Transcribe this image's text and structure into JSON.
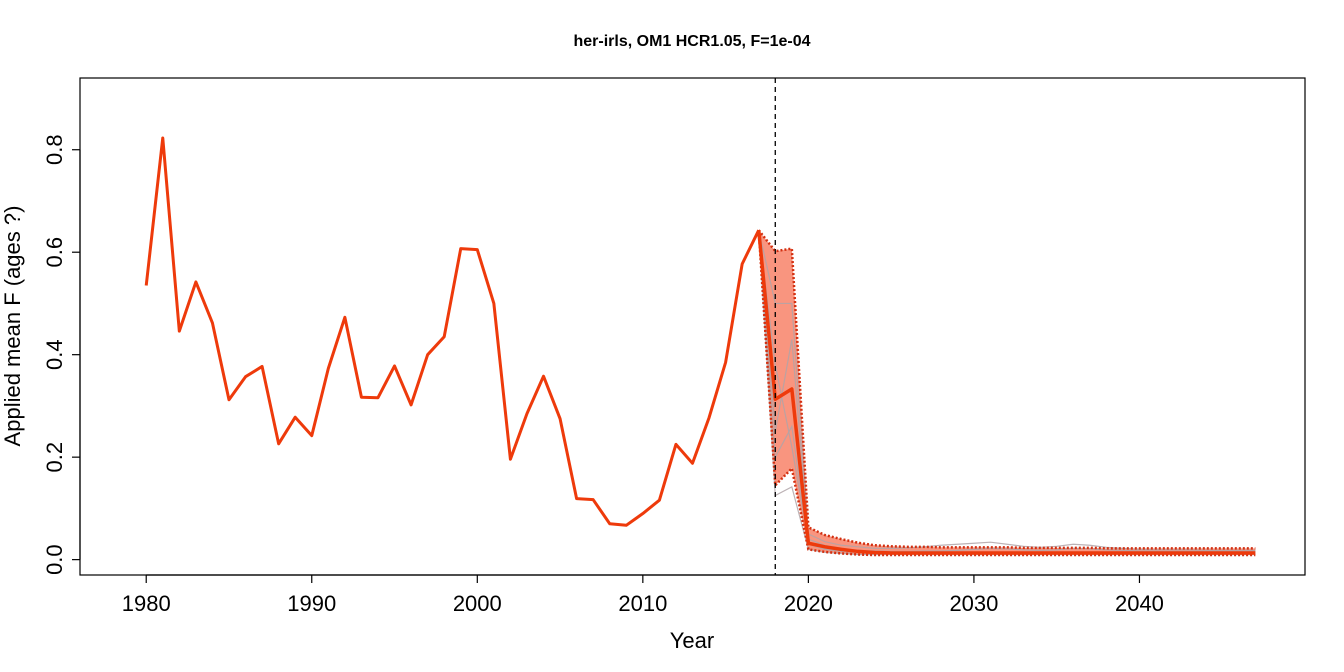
{
  "chart_data": {
    "type": "line",
    "title": "her-irls, OM1 HCR1.05, F=1e-04",
    "xlabel": "Year",
    "ylabel": "Applied mean F (ages ?)",
    "xlim": [
      1976,
      2050
    ],
    "ylim": [
      -0.03,
      0.94
    ],
    "x_ticks": [
      1980,
      1990,
      2000,
      2010,
      2020,
      2030,
      2040
    ],
    "x_tick_labels": [
      "1980",
      "1990",
      "2000",
      "2010",
      "2020",
      "2030",
      "2040"
    ],
    "y_ticks": [
      0.0,
      0.2,
      0.4,
      0.6,
      0.8
    ],
    "y_tick_labels": [
      "0.0",
      "0.2",
      "0.4",
      "0.6",
      "0.8"
    ],
    "grid": false,
    "legend": "none",
    "reference_line": {
      "x": 2018,
      "style": "dashed",
      "color": "#000000"
    },
    "colors": {
      "median": "#ee3a0b",
      "band_fill": "#f9957f",
      "band_edge": "#d32f10",
      "iterations": "#b0a5a8"
    },
    "historical": {
      "x": [
        1980,
        1981,
        1982,
        1983,
        1984,
        1985,
        1986,
        1987,
        1988,
        1989,
        1990,
        1991,
        1992,
        1993,
        1994,
        1995,
        1996,
        1997,
        1998,
        1999,
        2000,
        2001,
        2002,
        2003,
        2004,
        2005,
        2006,
        2007,
        2008,
        2009,
        2010,
        2011,
        2012,
        2013,
        2014,
        2015,
        2016,
        2017
      ],
      "values": [
        0.535,
        0.823,
        0.446,
        0.542,
        0.462,
        0.312,
        0.357,
        0.377,
        0.226,
        0.278,
        0.242,
        0.373,
        0.473,
        0.317,
        0.316,
        0.378,
        0.302,
        0.4,
        0.435,
        0.607,
        0.605,
        0.5,
        0.196,
        0.285,
        0.358,
        0.275,
        0.119,
        0.117,
        0.07,
        0.067,
        0.09,
        0.116,
        0.225,
        0.188,
        0.277,
        0.385,
        0.577,
        0.643
      ]
    },
    "projection": {
      "x": [
        2017,
        2018,
        2019,
        2020,
        2021,
        2022,
        2023,
        2024,
        2025,
        2026,
        2027,
        2028,
        2029,
        2030,
        2031,
        2032,
        2033,
        2034,
        2035,
        2036,
        2037,
        2038,
        2039,
        2040,
        2041,
        2042,
        2043,
        2044,
        2045,
        2046,
        2047
      ],
      "median": [
        0.643,
        0.313,
        0.333,
        0.032,
        0.025,
        0.02,
        0.016,
        0.014,
        0.013,
        0.013,
        0.013,
        0.013,
        0.013,
        0.013,
        0.013,
        0.013,
        0.013,
        0.013,
        0.013,
        0.013,
        0.013,
        0.013,
        0.013,
        0.013,
        0.013,
        0.013,
        0.013,
        0.013,
        0.013,
        0.013,
        0.013
      ],
      "upper": [
        0.643,
        0.602,
        0.607,
        0.063,
        0.048,
        0.04,
        0.033,
        0.028,
        0.026,
        0.025,
        0.025,
        0.024,
        0.024,
        0.024,
        0.024,
        0.024,
        0.023,
        0.023,
        0.023,
        0.023,
        0.023,
        0.022,
        0.022,
        0.022,
        0.022,
        0.022,
        0.022,
        0.022,
        0.022,
        0.022,
        0.022
      ],
      "lower": [
        0.643,
        0.145,
        0.178,
        0.02,
        0.015,
        0.012,
        0.01,
        0.009,
        0.009,
        0.009,
        0.009,
        0.009,
        0.009,
        0.009,
        0.009,
        0.009,
        0.009,
        0.009,
        0.009,
        0.009,
        0.009,
        0.009,
        0.009,
        0.009,
        0.009,
        0.009,
        0.009,
        0.009,
        0.009,
        0.009,
        0.009
      ],
      "iterations": [
        [
          0.643,
          0.5,
          0.5,
          0.05,
          0.035,
          0.028,
          0.025,
          0.022,
          0.022,
          0.023,
          0.025,
          0.028,
          0.03,
          0.032,
          0.034,
          0.03,
          0.026,
          0.024,
          0.026,
          0.03,
          0.028,
          0.024,
          0.022,
          0.02,
          0.019,
          0.019,
          0.019,
          0.018,
          0.018,
          0.018,
          0.018
        ],
        [
          0.643,
          0.125,
          0.142,
          0.02,
          0.014,
          0.012,
          0.01,
          0.01,
          0.01,
          0.01,
          0.01,
          0.01,
          0.01,
          0.01,
          0.01,
          0.01,
          0.01,
          0.01,
          0.01,
          0.01,
          0.01,
          0.01,
          0.01,
          0.01,
          0.01,
          0.01,
          0.01,
          0.01,
          0.01,
          0.01,
          0.01
        ],
        [
          0.643,
          0.25,
          0.43,
          0.04,
          0.028,
          0.022,
          0.018,
          0.017,
          0.016,
          0.016,
          0.017,
          0.017,
          0.018,
          0.02,
          0.022,
          0.021,
          0.019,
          0.018,
          0.019,
          0.022,
          0.021,
          0.019,
          0.018,
          0.017,
          0.016,
          0.016,
          0.016,
          0.016,
          0.016,
          0.016,
          0.016
        ],
        [
          0.643,
          0.2,
          0.26,
          0.03,
          0.02,
          0.016,
          0.014,
          0.013,
          0.013,
          0.013,
          0.013,
          0.013,
          0.013,
          0.014,
          0.014,
          0.014,
          0.013,
          0.013,
          0.014,
          0.014,
          0.014,
          0.013,
          0.013,
          0.013,
          0.013,
          0.013,
          0.013,
          0.013,
          0.013,
          0.013,
          0.013
        ],
        [
          0.643,
          0.38,
          0.22,
          0.035,
          0.022,
          0.018,
          0.015,
          0.014,
          0.014,
          0.014,
          0.014,
          0.015,
          0.015,
          0.015,
          0.015,
          0.015,
          0.015,
          0.015,
          0.015,
          0.015,
          0.015,
          0.015,
          0.015,
          0.015,
          0.015,
          0.015,
          0.015,
          0.015,
          0.015,
          0.015,
          0.015
        ]
      ]
    }
  }
}
